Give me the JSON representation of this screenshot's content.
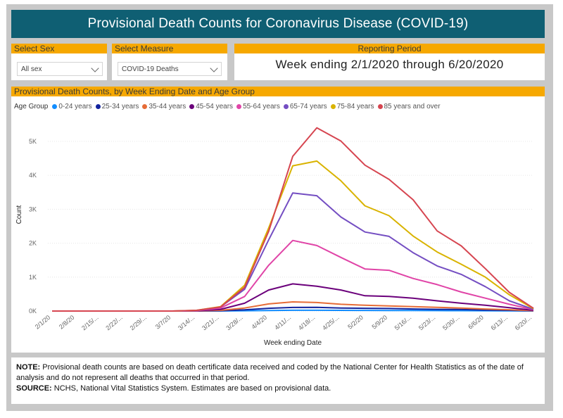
{
  "title": "Provisional Death Counts for Coronavirus Disease (COVID-19)",
  "filters": {
    "sex": {
      "label": "Select Sex",
      "value": "All sex"
    },
    "measure": {
      "label": "Select Measure",
      "value": "COVID-19 Deaths"
    },
    "period": {
      "label": "Reporting Period",
      "value": "Week ending 2/1/2020 through 6/20/2020"
    }
  },
  "chart_panel_title": "Provisional Death Counts, by Week Ending Date and Age Group",
  "note": {
    "note_label": "NOTE:",
    "note_text": " Provisional death counts are based on death certificate data received and coded by the National Center for Health Statistics as of the date of analysis and do not represent all deaths that occurred in that period.",
    "source_label": "SOURCE:",
    "source_text": " NCHS, National Vital Statistics System. Estimates are based on provisional data."
  },
  "chart_data": {
    "type": "line",
    "legend_title": "Age Group",
    "xlabel": "Week ending Date",
    "ylabel": "Count",
    "ylim": [
      0,
      5600
    ],
    "yticks": [
      0,
      1000,
      2000,
      3000,
      4000,
      5000
    ],
    "ytick_labels": [
      "0K",
      "1K",
      "2K",
      "3K",
      "4K",
      "5K"
    ],
    "x": [
      "2/1/20",
      "2/8/20",
      "2/15/...",
      "2/22/...",
      "2/29/...",
      "3/7/20",
      "3/14/...",
      "3/21/...",
      "3/28/...",
      "4/4/20",
      "4/11/...",
      "4/18/...",
      "4/25/...",
      "5/2/20",
      "5/9/20",
      "5/16/...",
      "5/23/...",
      "5/30/...",
      "6/6/20",
      "6/13/...",
      "6/20/..."
    ],
    "weeks": [
      "2/1/20",
      "2/8/20",
      "2/15/20",
      "2/22/20",
      "2/29/20",
      "3/7/20",
      "3/14/20",
      "3/21/20",
      "3/28/20",
      "4/4/20",
      "4/11/20",
      "4/18/20",
      "4/25/20",
      "5/2/20",
      "5/9/20",
      "5/16/20",
      "5/23/20",
      "5/30/20",
      "6/6/20",
      "6/13/20",
      "6/20/20"
    ],
    "series": [
      {
        "name": "0-24 years",
        "color": "#118dff",
        "values": [
          0,
          0,
          0,
          0,
          0,
          0,
          0,
          2,
          8,
          15,
          22,
          22,
          20,
          18,
          16,
          14,
          12,
          10,
          8,
          6,
          2
        ]
      },
      {
        "name": "25-34 years",
        "color": "#12239e",
        "values": [
          0,
          0,
          0,
          0,
          0,
          0,
          1,
          8,
          35,
          80,
          105,
          110,
          90,
          80,
          75,
          60,
          50,
          45,
          30,
          20,
          5
        ]
      },
      {
        "name": "35-44 years",
        "color": "#e66c37",
        "values": [
          0,
          0,
          0,
          0,
          0,
          0,
          2,
          20,
          90,
          210,
          270,
          250,
          200,
          170,
          150,
          130,
          110,
          90,
          60,
          40,
          10
        ]
      },
      {
        "name": "45-54 years",
        "color": "#6b007b",
        "values": [
          0,
          0,
          0,
          0,
          0,
          0,
          5,
          50,
          230,
          620,
          800,
          730,
          620,
          450,
          430,
          380,
          300,
          230,
          170,
          100,
          20
        ]
      },
      {
        "name": "55-64 years",
        "color": "#e044a7",
        "values": [
          0,
          0,
          0,
          0,
          0,
          0,
          10,
          90,
          430,
          1350,
          2080,
          1930,
          1580,
          1240,
          1200,
          960,
          780,
          560,
          380,
          200,
          40
        ]
      },
      {
        "name": "65-74 years",
        "color": "#744ec2",
        "values": [
          0,
          0,
          0,
          0,
          0,
          0,
          15,
          120,
          640,
          2100,
          3480,
          3400,
          2770,
          2330,
          2200,
          1720,
          1330,
          1080,
          720,
          300,
          50
        ]
      },
      {
        "name": "75-84 years",
        "color": "#d9b300",
        "values": [
          0,
          0,
          0,
          0,
          0,
          0,
          20,
          130,
          760,
          2450,
          4280,
          4420,
          3840,
          3100,
          2810,
          2210,
          1740,
          1380,
          1000,
          480,
          70
        ]
      },
      {
        "name": "85 years and over",
        "color": "#d64550",
        "values": [
          0,
          0,
          0,
          0,
          0,
          0,
          20,
          120,
          700,
          2350,
          4560,
          5400,
          5010,
          4300,
          3880,
          3280,
          2360,
          1920,
          1250,
          550,
          80
        ]
      }
    ]
  }
}
